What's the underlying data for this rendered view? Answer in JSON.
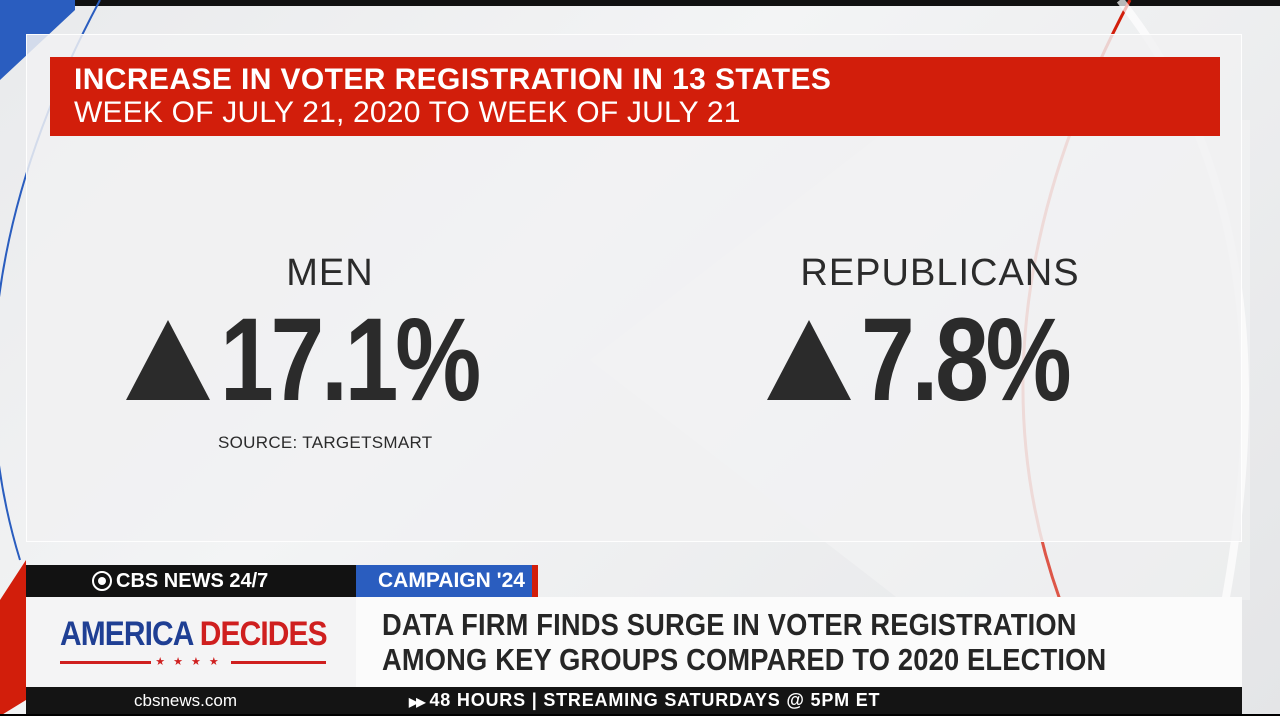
{
  "graphic": {
    "headline_line1": "INCREASE IN VOTER REGISTRATION IN 13 STATES",
    "headline_line2": "WEEK OF JULY 21, 2020 TO WEEK OF JULY 21",
    "stats": [
      {
        "label": "MEN",
        "value": "17.1%",
        "direction_icon": "up-triangle-icon"
      },
      {
        "label": "REPUBLICANS",
        "value": "7.8%",
        "direction_icon": "up-triangle-icon"
      }
    ],
    "source": "SOURCE: TARGETSMART"
  },
  "lower_third": {
    "network": "CBS NEWS 24/7",
    "tag": "CAMPAIGN '24",
    "show_title_part1": "AMERICA",
    "show_title_part2": "DECIDES",
    "show_stars": "★★★★",
    "story_line1": "DATA FIRM FINDS SURGE IN VOTER REGISTRATION",
    "story_line2": "AMONG KEY GROUPS COMPARED TO 2020 ELECTION",
    "website": "cbsnews.com",
    "crawl_arrow": "▶▶",
    "crawl": "48 HOURS | STREAMING SATURDAYS @ 5PM ET"
  },
  "colors": {
    "headline_red": "#d21e0b",
    "campaign_blue": "#2a5dbf",
    "america_blue": "#1f3f94",
    "decides_red": "#cf1f1f",
    "stat_text": "#2b2b2b"
  }
}
